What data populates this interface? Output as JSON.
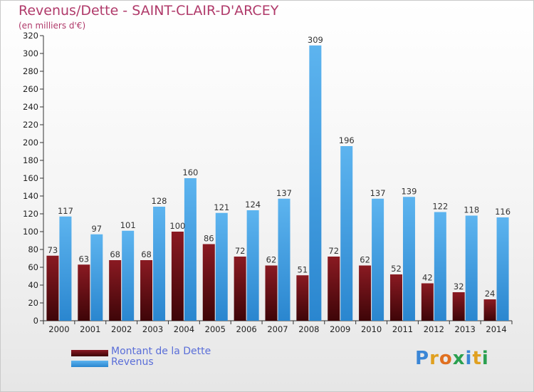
{
  "title": "Revenus/Dette - SAINT-CLAIR-D'ARCEY",
  "subtitle": "(en milliers d'€)",
  "colors": {
    "dette": "#6b0f14",
    "revenus": "#3c9be0",
    "title": "#b03a6a",
    "legend_text": "#5a6ed8"
  },
  "chart_data": {
    "type": "bar",
    "title": "Revenus/Dette - SAINT-CLAIR-D'ARCEY",
    "ylabel": "(en milliers d'€)",
    "xlabel": "",
    "ylim": [
      0,
      320
    ],
    "yticks": [
      0,
      20,
      40,
      60,
      80,
      100,
      120,
      140,
      160,
      180,
      200,
      220,
      240,
      260,
      280,
      300,
      320
    ],
    "grid": false,
    "legend": "bottom-left",
    "categories": [
      "2000",
      "2001",
      "2002",
      "2003",
      "2004",
      "2005",
      "2006",
      "2007",
      "2008",
      "2009",
      "2010",
      "2011",
      "2012",
      "2013",
      "2014"
    ],
    "series": [
      {
        "name": "Montant de la Dette",
        "values": [
          73,
          63,
          68,
          68,
          100,
          86,
          72,
          62,
          51,
          72,
          62,
          52,
          42,
          32,
          24
        ]
      },
      {
        "name": "Revenus",
        "values": [
          117,
          97,
          101,
          128,
          160,
          121,
          124,
          137,
          309,
          196,
          137,
          139,
          122,
          118,
          116
        ]
      }
    ]
  },
  "legend": {
    "items": [
      {
        "label": "Montant de la Dette"
      },
      {
        "label": "Revenus"
      }
    ]
  },
  "logo": {
    "letters": [
      "P",
      "r",
      "o",
      "x",
      "i",
      "t",
      "i"
    ],
    "colors": [
      "#3a86d6",
      "#e0a020",
      "#e07020",
      "#2aa050",
      "#3a86d6",
      "#e0a020",
      "#2aa050"
    ]
  }
}
